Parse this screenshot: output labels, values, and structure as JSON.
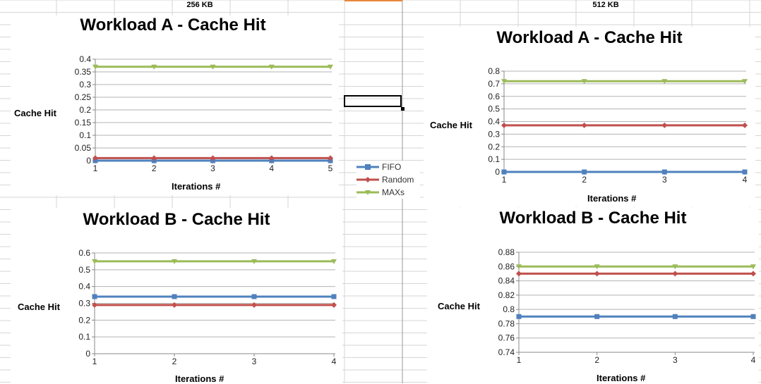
{
  "sheet": {
    "col_headers": [
      "256 KB",
      "512 KB"
    ]
  },
  "legend": {
    "items": [
      {
        "name": "FIFO",
        "color": "#4f81bd",
        "marker": "square"
      },
      {
        "name": "Random",
        "color": "#c0504d",
        "marker": "diamond"
      },
      {
        "name": "MAXs",
        "color": "#9bbb59",
        "marker": "triangle"
      }
    ]
  },
  "chart_data": [
    {
      "id": "a256",
      "type": "line",
      "title": "Workload A - Cache Hit",
      "xlabel": "Iterations #",
      "ylabel": "Cache Hit",
      "categories": [
        "1",
        "2",
        "3",
        "4",
        "5"
      ],
      "ylim": [
        0,
        0.4
      ],
      "ystep": 0.05,
      "yticks": [
        "0",
        "0.05",
        "0.1",
        "0.15",
        "0.2",
        "0.25",
        "0.3",
        "0.35",
        "0.4"
      ],
      "grid": true,
      "series": [
        {
          "name": "FIFO",
          "values": [
            0,
            0,
            0,
            0,
            0
          ]
        },
        {
          "name": "Random",
          "values": [
            0.01,
            0.01,
            0.01,
            0.01,
            0.01
          ]
        },
        {
          "name": "MAXs",
          "values": [
            0.37,
            0.37,
            0.37,
            0.37,
            0.37
          ]
        }
      ]
    },
    {
      "id": "a512",
      "type": "line",
      "title": "Workload A - Cache Hit",
      "xlabel": "Iterations #",
      "ylabel": "Cache Hit",
      "categories": [
        "1",
        "2",
        "3",
        "4"
      ],
      "ylim": [
        0,
        0.8
      ],
      "ystep": 0.1,
      "yticks": [
        "0",
        "0.1",
        "0.2",
        "0.3",
        "0.4",
        "0.5",
        "0.6",
        "0.7",
        "0.8"
      ],
      "grid": true,
      "series": [
        {
          "name": "FIFO",
          "values": [
            0,
            0,
            0,
            0
          ]
        },
        {
          "name": "Random",
          "values": [
            0.37,
            0.37,
            0.37,
            0.37
          ]
        },
        {
          "name": "MAXs",
          "values": [
            0.72,
            0.72,
            0.72,
            0.72
          ]
        }
      ]
    },
    {
      "id": "b256",
      "type": "line",
      "title": "Workload B - Cache Hit",
      "xlabel": "Iterations #",
      "ylabel": "Cache Hit",
      "categories": [
        "1",
        "2",
        "3",
        "4"
      ],
      "ylim": [
        0,
        0.6
      ],
      "ystep": 0.1,
      "yticks": [
        "0",
        "0.1",
        "0.2",
        "0.3",
        "0.4",
        "0.5",
        "0.6"
      ],
      "grid": true,
      "series": [
        {
          "name": "FIFO",
          "values": [
            0.34,
            0.34,
            0.34,
            0.34
          ]
        },
        {
          "name": "Random",
          "values": [
            0.29,
            0.29,
            0.29,
            0.29
          ]
        },
        {
          "name": "MAXs",
          "values": [
            0.55,
            0.55,
            0.55,
            0.55
          ]
        }
      ]
    },
    {
      "id": "b512",
      "type": "line",
      "title": "Workload B - Cache Hit",
      "xlabel": "Iterations #",
      "ylabel": "Cache Hit",
      "categories": [
        "1",
        "2",
        "3",
        "4"
      ],
      "ylim": [
        0.74,
        0.88
      ],
      "ystep": 0.02,
      "yticks": [
        "0.74",
        "0.76",
        "0.78",
        "0.8",
        "0.82",
        "0.84",
        "0.86",
        "0.88"
      ],
      "grid": true,
      "series": [
        {
          "name": "FIFO",
          "values": [
            0.79,
            0.79,
            0.79,
            0.79
          ]
        },
        {
          "name": "Random",
          "values": [
            0.85,
            0.85,
            0.85,
            0.85
          ]
        },
        {
          "name": "MAXs",
          "values": [
            0.86,
            0.86,
            0.86,
            0.86
          ]
        }
      ]
    }
  ]
}
